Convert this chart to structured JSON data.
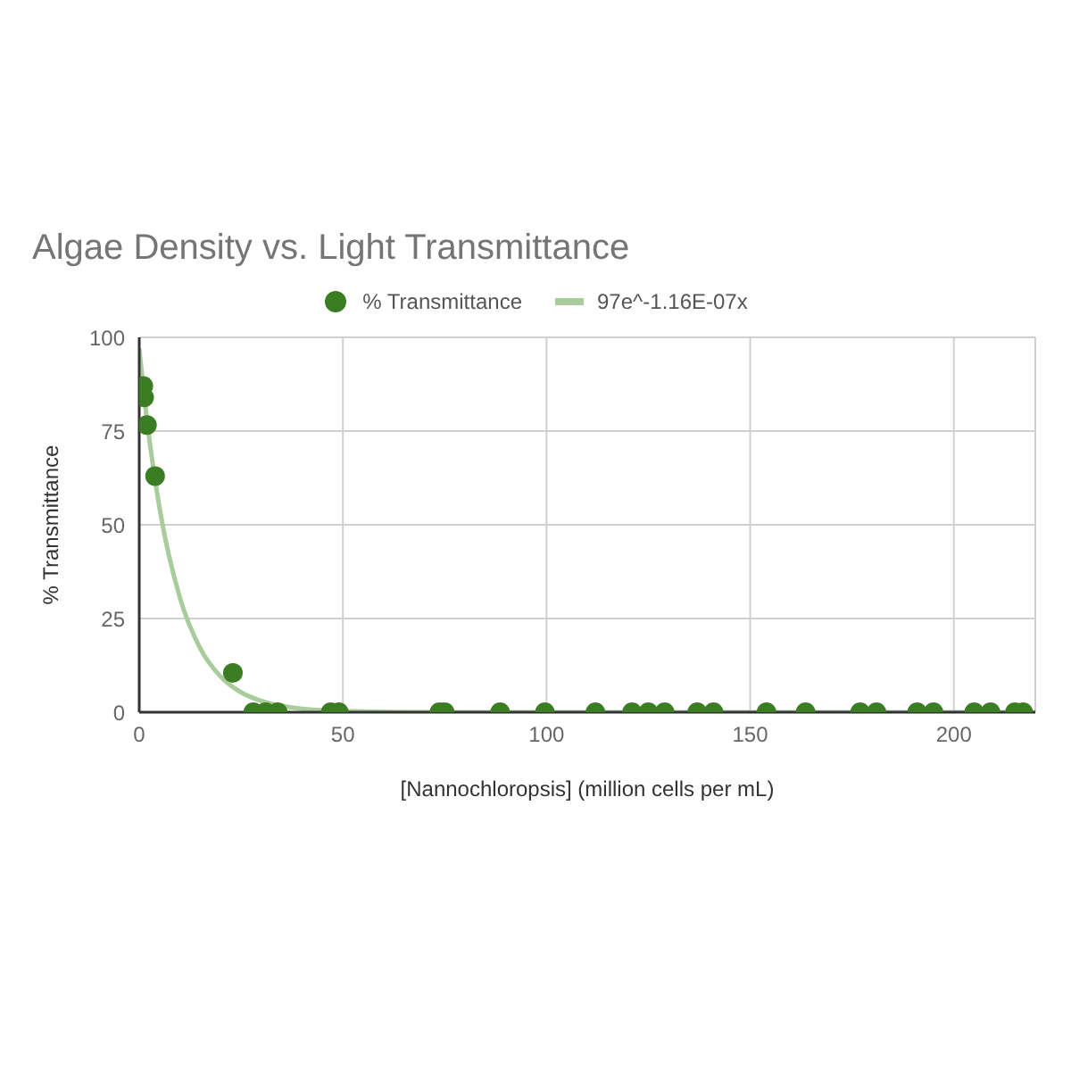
{
  "chart_data": {
    "type": "scatter",
    "title": "Algae Density vs. Light Transmittance",
    "xlabel": "[Nannochloropsis] (million cells per mL)",
    "ylabel": "% Transmittance",
    "xlim": [
      0,
      220
    ],
    "xticks": [
      0,
      50,
      100,
      150,
      200
    ],
    "ylim": [
      0,
      100
    ],
    "yticks": [
      0,
      25,
      50,
      75,
      100
    ],
    "grid": true,
    "legend": "top",
    "series": [
      {
        "name": "% Transmittance",
        "marker": "circle",
        "color": "#3a7d22",
        "x": [
          1,
          1.2,
          1.9,
          3.9,
          23,
          28,
          31,
          34,
          47,
          49,
          73.7,
          75,
          88.6,
          99.6,
          112,
          121,
          125,
          129,
          137,
          141,
          154,
          163.6,
          177,
          181,
          191,
          195,
          205,
          209,
          215,
          217
        ],
        "values": [
          87,
          84,
          76.6,
          63,
          10.5,
          0,
          0,
          0,
          0,
          0,
          0,
          0,
          0,
          0,
          0,
          0,
          0,
          0,
          0,
          0,
          0,
          0,
          0,
          0,
          0,
          0,
          0,
          0,
          0,
          0
        ]
      },
      {
        "name": "97e^-1.16E-07x",
        "type": "line",
        "marker": "none",
        "color": "#a9cc9c",
        "x": [
          0,
          2,
          5,
          10,
          15,
          20,
          25,
          30,
          40,
          50,
          75,
          100,
          150,
          220
        ],
        "values": [
          97,
          77,
          54.4,
          30.5,
          17,
          9.5,
          5.3,
          3,
          0.9,
          0.3,
          0,
          0,
          0,
          0
        ]
      }
    ]
  }
}
